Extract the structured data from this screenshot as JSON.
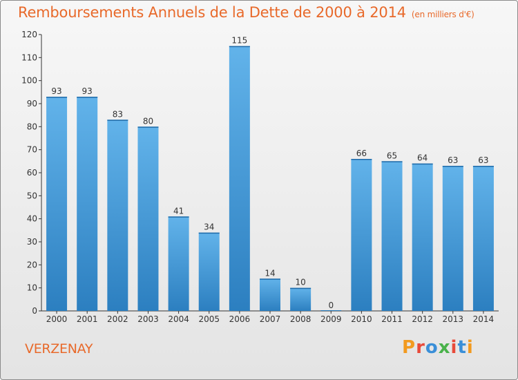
{
  "header": {
    "title": "Remboursements Annuels de la Dette de 2000 à 2014",
    "unit": "(en milliers d'€)"
  },
  "footer": {
    "commune": "VERZENAY",
    "logo": "Proxiti",
    "logo_colors": [
      "#f29a1f",
      "#e84a3a",
      "#3a8fd8",
      "#49b24a",
      "#e84a3a",
      "#3a8fd8",
      "#f29a1f"
    ]
  },
  "colors": {
    "accent": "#e8692a",
    "bar_light": "#62b3ea",
    "bar_dark": "#2c7fc0",
    "label": "#333333"
  },
  "chart_data": {
    "type": "bar",
    "categories": [
      "2000",
      "2001",
      "2002",
      "2003",
      "2004",
      "2005",
      "2006",
      "2007",
      "2008",
      "2009",
      "2010",
      "2011",
      "2012",
      "2013",
      "2014"
    ],
    "values": [
      93,
      93,
      83,
      80,
      41,
      34,
      115,
      14,
      10,
      0,
      66,
      65,
      64,
      63,
      63
    ],
    "ylim": [
      0,
      120
    ],
    "yticks": [
      0,
      10,
      20,
      30,
      40,
      50,
      60,
      70,
      80,
      90,
      100,
      110,
      120
    ],
    "grid": false,
    "data_labels": true
  }
}
